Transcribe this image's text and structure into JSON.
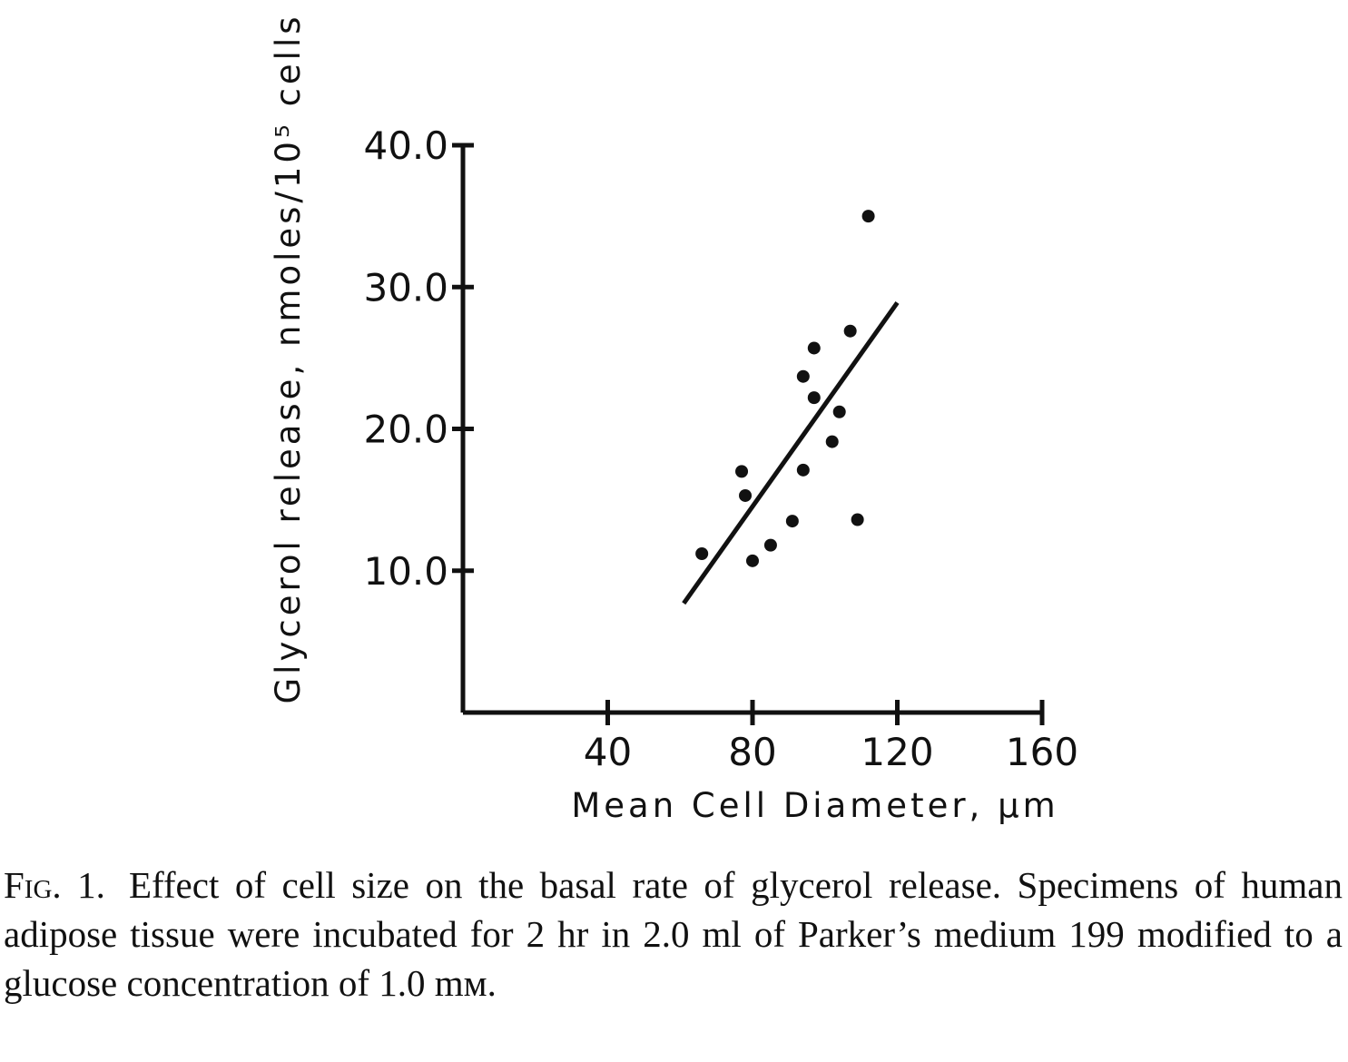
{
  "chart_data": {
    "type": "scatter",
    "xlabel": "Mean Cell Diameter, µm",
    "ylabel": "Glycerol release, nmoles/10⁵ cells",
    "xlim": [
      0,
      160
    ],
    "ylim": [
      0,
      40
    ],
    "xticks": [
      40,
      80,
      120,
      160
    ],
    "xtick_labels": [
      "40",
      "80",
      "120",
      "160"
    ],
    "yticks": [
      10,
      20,
      30,
      40
    ],
    "ytick_labels": [
      "10.0",
      "20.0",
      "30.0",
      "40.0"
    ],
    "grid": false,
    "points": [
      {
        "x": 66,
        "y": 11.2
      },
      {
        "x": 77,
        "y": 17.0
      },
      {
        "x": 78,
        "y": 15.3
      },
      {
        "x": 80,
        "y": 10.7
      },
      {
        "x": 85,
        "y": 11.8
      },
      {
        "x": 91,
        "y": 13.5
      },
      {
        "x": 94,
        "y": 23.7
      },
      {
        "x": 94,
        "y": 17.1
      },
      {
        "x": 97,
        "y": 25.7
      },
      {
        "x": 97,
        "y": 22.2
      },
      {
        "x": 102,
        "y": 19.1
      },
      {
        "x": 104,
        "y": 21.2
      },
      {
        "x": 107,
        "y": 26.9
      },
      {
        "x": 109,
        "y": 13.6
      },
      {
        "x": 112,
        "y": 35.0
      }
    ],
    "fit_line": {
      "x": [
        61,
        120
      ],
      "y": [
        7.7,
        28.9
      ]
    },
    "colors": {
      "marks": "#111111"
    }
  },
  "caption": {
    "label": "Fig. 1.",
    "text": "Effect of cell size on the basal rate of glycerol release. Specimens of human adipose tissue were incubated for 2 hr in 2.0 ml of Parker’s medium 199 modified to a glucose concentration of 1.0 mм."
  }
}
